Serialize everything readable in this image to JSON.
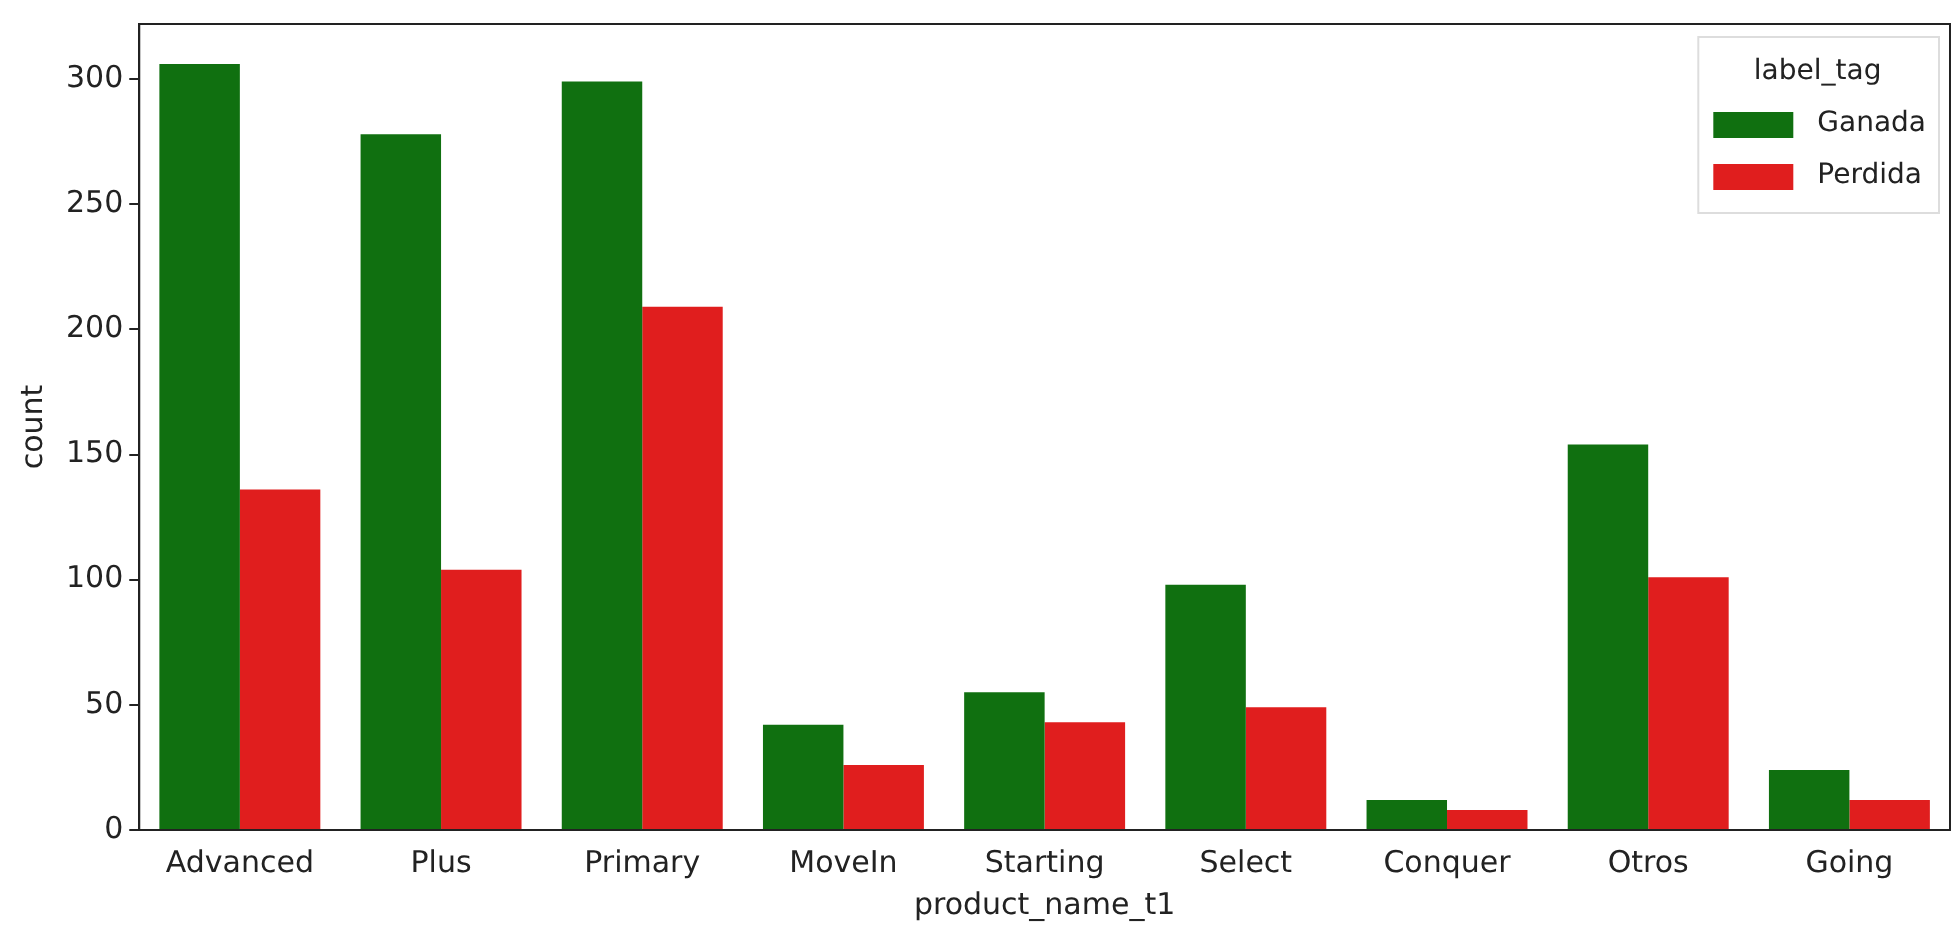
{
  "chart_data": {
    "type": "bar",
    "xlabel": "product_name_t1",
    "ylabel": "count",
    "legend_title": "label_tag",
    "legend": "top right",
    "grid": false,
    "categories": [
      "Advanced",
      "Plus",
      "Primary",
      "MoveIn",
      "Starting",
      "Select",
      "Conquer",
      "Otros",
      "Going"
    ],
    "ylim": [
      0,
      322
    ],
    "yticks": [
      0,
      50,
      100,
      150,
      200,
      250,
      300
    ],
    "series": [
      {
        "name": "Ganada",
        "color": "#107010",
        "values": [
          306,
          278,
          299,
          42,
          55,
          98,
          12,
          154,
          24
        ]
      },
      {
        "name": "Perdida",
        "color": "#e01e1e",
        "values": [
          136,
          104,
          209,
          26,
          43,
          49,
          8,
          101,
          12
        ]
      }
    ]
  }
}
